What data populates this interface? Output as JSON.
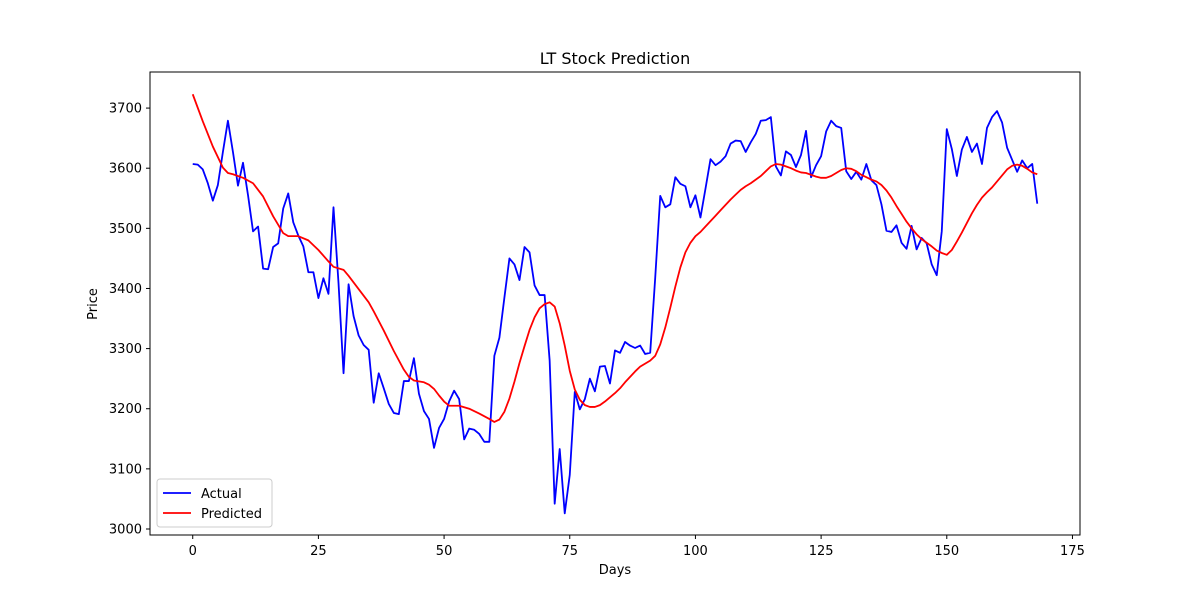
{
  "chart_data": {
    "type": "line",
    "title": "LT Stock Prediction",
    "xlabel": "Days",
    "ylabel": "Price",
    "xlim": [
      -8.5,
      176.5
    ],
    "ylim": [
      2990,
      3760
    ],
    "xticks": [
      0,
      25,
      50,
      75,
      100,
      125,
      150,
      175
    ],
    "yticks": [
      3000,
      3100,
      3200,
      3300,
      3400,
      3500,
      3600,
      3700
    ],
    "grid": false,
    "legend_position": "lower-left",
    "series": [
      {
        "name": "Actual",
        "color": "#0000ff",
        "points": [
          [
            0,
            3607
          ],
          [
            1,
            3606
          ],
          [
            2,
            3598
          ],
          [
            3,
            3575
          ],
          [
            4,
            3546
          ],
          [
            5,
            3572
          ],
          [
            6,
            3627
          ],
          [
            7,
            3679
          ],
          [
            8,
            3627
          ],
          [
            9,
            3571
          ],
          [
            10,
            3609
          ],
          [
            11,
            3555
          ],
          [
            12,
            3495
          ],
          [
            13,
            3503
          ],
          [
            14,
            3433
          ],
          [
            15,
            3432
          ],
          [
            16,
            3469
          ],
          [
            17,
            3475
          ],
          [
            18,
            3533
          ],
          [
            19,
            3558
          ],
          [
            20,
            3510
          ],
          [
            21,
            3488
          ],
          [
            22,
            3470
          ],
          [
            23,
            3427
          ],
          [
            24,
            3427
          ],
          [
            25,
            3384
          ],
          [
            26,
            3417
          ],
          [
            27,
            3391
          ],
          [
            28,
            3535
          ],
          [
            29,
            3409
          ],
          [
            30,
            3259
          ],
          [
            31,
            3407
          ],
          [
            32,
            3354
          ],
          [
            33,
            3322
          ],
          [
            34,
            3306
          ],
          [
            35,
            3298
          ],
          [
            36,
            3210
          ],
          [
            37,
            3259
          ],
          [
            38,
            3234
          ],
          [
            39,
            3208
          ],
          [
            40,
            3193
          ],
          [
            41,
            3191
          ],
          [
            42,
            3246
          ],
          [
            43,
            3246
          ],
          [
            44,
            3284
          ],
          [
            45,
            3225
          ],
          [
            46,
            3196
          ],
          [
            47,
            3183
          ],
          [
            48,
            3135
          ],
          [
            49,
            3168
          ],
          [
            50,
            3183
          ],
          [
            51,
            3212
          ],
          [
            52,
            3230
          ],
          [
            53,
            3216
          ],
          [
            54,
            3149
          ],
          [
            55,
            3167
          ],
          [
            56,
            3165
          ],
          [
            57,
            3158
          ],
          [
            58,
            3145
          ],
          [
            59,
            3145
          ],
          [
            60,
            3288
          ],
          [
            61,
            3318
          ],
          [
            62,
            3385
          ],
          [
            63,
            3450
          ],
          [
            64,
            3440
          ],
          [
            65,
            3414
          ],
          [
            66,
            3469
          ],
          [
            67,
            3460
          ],
          [
            68,
            3405
          ],
          [
            69,
            3389
          ],
          [
            70,
            3389
          ],
          [
            71,
            3280
          ],
          [
            72,
            3042
          ],
          [
            73,
            3133
          ],
          [
            74,
            3026
          ],
          [
            75,
            3090
          ],
          [
            76,
            3228
          ],
          [
            77,
            3199
          ],
          [
            78,
            3216
          ],
          [
            79,
            3250
          ],
          [
            80,
            3229
          ],
          [
            81,
            3270
          ],
          [
            82,
            3271
          ],
          [
            83,
            3242
          ],
          [
            84,
            3297
          ],
          [
            85,
            3293
          ],
          [
            86,
            3311
          ],
          [
            87,
            3305
          ],
          [
            88,
            3301
          ],
          [
            89,
            3305
          ],
          [
            90,
            3291
          ],
          [
            91,
            3293
          ],
          [
            92,
            3418
          ],
          [
            93,
            3554
          ],
          [
            94,
            3535
          ],
          [
            95,
            3540
          ],
          [
            96,
            3585
          ],
          [
            97,
            3574
          ],
          [
            98,
            3570
          ],
          [
            99,
            3535
          ],
          [
            100,
            3555
          ],
          [
            101,
            3518
          ],
          [
            102,
            3566
          ],
          [
            103,
            3615
          ],
          [
            104,
            3605
          ],
          [
            105,
            3611
          ],
          [
            106,
            3620
          ],
          [
            107,
            3641
          ],
          [
            108,
            3646
          ],
          [
            109,
            3645
          ],
          [
            110,
            3627
          ],
          [
            111,
            3643
          ],
          [
            112,
            3657
          ],
          [
            113,
            3679
          ],
          [
            114,
            3680
          ],
          [
            115,
            3685
          ],
          [
            116,
            3603
          ],
          [
            117,
            3588
          ],
          [
            118,
            3628
          ],
          [
            119,
            3622
          ],
          [
            120,
            3602
          ],
          [
            121,
            3622
          ],
          [
            122,
            3662
          ],
          [
            123,
            3585
          ],
          [
            124,
            3605
          ],
          [
            125,
            3620
          ],
          [
            126,
            3661
          ],
          [
            127,
            3679
          ],
          [
            128,
            3670
          ],
          [
            129,
            3667
          ],
          [
            130,
            3595
          ],
          [
            131,
            3582
          ],
          [
            132,
            3594
          ],
          [
            133,
            3581
          ],
          [
            134,
            3607
          ],
          [
            135,
            3580
          ],
          [
            136,
            3572
          ],
          [
            137,
            3540
          ],
          [
            138,
            3496
          ],
          [
            139,
            3494
          ],
          [
            140,
            3505
          ],
          [
            141,
            3476
          ],
          [
            142,
            3466
          ],
          [
            143,
            3504
          ],
          [
            144,
            3465
          ],
          [
            145,
            3484
          ],
          [
            146,
            3475
          ],
          [
            147,
            3440
          ],
          [
            148,
            3422
          ],
          [
            149,
            3495
          ],
          [
            150,
            3665
          ],
          [
            151,
            3632
          ],
          [
            152,
            3587
          ],
          [
            153,
            3631
          ],
          [
            154,
            3652
          ],
          [
            155,
            3627
          ],
          [
            156,
            3641
          ],
          [
            157,
            3607
          ],
          [
            158,
            3667
          ],
          [
            159,
            3685
          ],
          [
            160,
            3695
          ],
          [
            161,
            3676
          ],
          [
            162,
            3634
          ],
          [
            163,
            3614
          ],
          [
            164,
            3594
          ],
          [
            165,
            3613
          ],
          [
            166,
            3600
          ],
          [
            167,
            3607
          ],
          [
            168,
            3541
          ]
        ]
      },
      {
        "name": "Predicted",
        "color": "#ff0000",
        "points": [
          [
            0,
            3723
          ],
          [
            2,
            3678
          ],
          [
            4,
            3636
          ],
          [
            6,
            3601
          ],
          [
            7,
            3592
          ],
          [
            8,
            3590
          ],
          [
            10,
            3584
          ],
          [
            12,
            3575
          ],
          [
            14,
            3553
          ],
          [
            16,
            3520
          ],
          [
            18,
            3492
          ],
          [
            19,
            3487
          ],
          [
            21,
            3487
          ],
          [
            23,
            3480
          ],
          [
            25,
            3464
          ],
          [
            27,
            3445
          ],
          [
            28,
            3436
          ],
          [
            30,
            3431
          ],
          [
            31,
            3421
          ],
          [
            33,
            3399
          ],
          [
            35,
            3377
          ],
          [
            36,
            3362
          ],
          [
            38,
            3330
          ],
          [
            40,
            3296
          ],
          [
            42,
            3265
          ],
          [
            43,
            3253
          ],
          [
            44,
            3247
          ],
          [
            46,
            3244
          ],
          [
            47,
            3240
          ],
          [
            48,
            3233
          ],
          [
            49,
            3222
          ],
          [
            50,
            3212
          ],
          [
            51,
            3205
          ],
          [
            53,
            3205
          ],
          [
            55,
            3200
          ],
          [
            57,
            3192
          ],
          [
            59,
            3183
          ],
          [
            60,
            3178
          ],
          [
            61,
            3182
          ],
          [
            62,
            3195
          ],
          [
            63,
            3217
          ],
          [
            64,
            3245
          ],
          [
            65,
            3276
          ],
          [
            66,
            3304
          ],
          [
            67,
            3331
          ],
          [
            68,
            3352
          ],
          [
            69,
            3367
          ],
          [
            70,
            3374
          ],
          [
            71,
            3377
          ],
          [
            72,
            3370
          ],
          [
            73,
            3342
          ],
          [
            74,
            3305
          ],
          [
            75,
            3263
          ],
          [
            76,
            3232
          ],
          [
            77,
            3215
          ],
          [
            78,
            3206
          ],
          [
            79,
            3203
          ],
          [
            80,
            3203
          ],
          [
            81,
            3206
          ],
          [
            82,
            3212
          ],
          [
            83,
            3219
          ],
          [
            84,
            3226
          ],
          [
            85,
            3234
          ],
          [
            86,
            3244
          ],
          [
            87,
            3253
          ],
          [
            88,
            3262
          ],
          [
            89,
            3270
          ],
          [
            90,
            3275
          ],
          [
            91,
            3280
          ],
          [
            92,
            3288
          ],
          [
            93,
            3307
          ],
          [
            94,
            3335
          ],
          [
            95,
            3368
          ],
          [
            96,
            3403
          ],
          [
            97,
            3435
          ],
          [
            98,
            3460
          ],
          [
            99,
            3476
          ],
          [
            100,
            3487
          ],
          [
            101,
            3494
          ],
          [
            102,
            3503
          ],
          [
            103,
            3512
          ],
          [
            104,
            3521
          ],
          [
            105,
            3530
          ],
          [
            106,
            3539
          ],
          [
            107,
            3548
          ],
          [
            108,
            3556
          ],
          [
            109,
            3564
          ],
          [
            110,
            3570
          ],
          [
            111,
            3575
          ],
          [
            112,
            3581
          ],
          [
            113,
            3587
          ],
          [
            114,
            3595
          ],
          [
            115,
            3603
          ],
          [
            116,
            3607
          ],
          [
            117,
            3606
          ],
          [
            118,
            3603
          ],
          [
            119,
            3600
          ],
          [
            120,
            3596
          ],
          [
            121,
            3593
          ],
          [
            122,
            3592
          ],
          [
            123,
            3589
          ],
          [
            124,
            3586
          ],
          [
            125,
            3584
          ],
          [
            126,
            3584
          ],
          [
            127,
            3587
          ],
          [
            128,
            3592
          ],
          [
            129,
            3597
          ],
          [
            130,
            3600
          ],
          [
            131,
            3599
          ],
          [
            132,
            3595
          ],
          [
            133,
            3589
          ],
          [
            134,
            3585
          ],
          [
            135,
            3581
          ],
          [
            136,
            3578
          ],
          [
            137,
            3572
          ],
          [
            138,
            3563
          ],
          [
            139,
            3551
          ],
          [
            140,
            3537
          ],
          [
            141,
            3524
          ],
          [
            142,
            3511
          ],
          [
            143,
            3500
          ],
          [
            144,
            3490
          ],
          [
            145,
            3482
          ],
          [
            146,
            3476
          ],
          [
            147,
            3470
          ],
          [
            148,
            3463
          ],
          [
            149,
            3459
          ],
          [
            150,
            3456
          ],
          [
            151,
            3464
          ],
          [
            152,
            3478
          ],
          [
            153,
            3493
          ],
          [
            154,
            3509
          ],
          [
            155,
            3525
          ],
          [
            156,
            3539
          ],
          [
            157,
            3551
          ],
          [
            158,
            3560
          ],
          [
            159,
            3568
          ],
          [
            160,
            3578
          ],
          [
            161,
            3588
          ],
          [
            162,
            3598
          ],
          [
            163,
            3604
          ],
          [
            164,
            3606
          ],
          [
            165,
            3604
          ],
          [
            166,
            3599
          ],
          [
            167,
            3593
          ],
          [
            168,
            3590
          ]
        ]
      }
    ]
  }
}
